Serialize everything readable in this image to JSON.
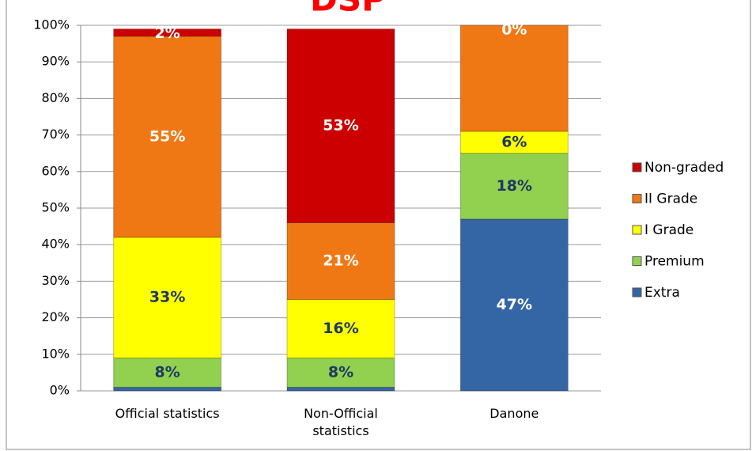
{
  "chart_data": {
    "type": "stacked_bar",
    "title": "DSP",
    "categories": [
      "Official statistics",
      "Non-Official statistics",
      "Danone"
    ],
    "series": [
      {
        "name": "Extra",
        "color": "#3465a4",
        "values": [
          1,
          1,
          47
        ],
        "value_labels": [
          null,
          null,
          "47%"
        ],
        "label_color": "#ffffff"
      },
      {
        "name": "Premium",
        "color": "#92d050",
        "values": [
          8,
          8,
          18
        ],
        "value_labels": [
          "8%",
          "8%",
          "18%"
        ],
        "label_color": "#1f3864"
      },
      {
        "name": "I Grade",
        "color": "#ffff00",
        "values": [
          33,
          16,
          6
        ],
        "value_labels": [
          "33%",
          "16%",
          "6%"
        ],
        "label_color": "#1f3864"
      },
      {
        "name": "II Grade",
        "color": "#f07814",
        "values": [
          55,
          21,
          29
        ],
        "value_labels": [
          "55%",
          "21%",
          null
        ],
        "label_color": "#ffffff"
      },
      {
        "name": "Non-graded",
        "color": "#cc0000",
        "values": [
          2,
          53,
          0
        ],
        "value_labels": [
          "2%",
          "53%",
          "0%"
        ],
        "label_color": "#ffffff"
      }
    ],
    "ylim": [
      0,
      100
    ],
    "yticks": [
      {
        "value": 0,
        "label": "0%"
      },
      {
        "value": 10,
        "label": "10%"
      },
      {
        "value": 20,
        "label": "20%"
      },
      {
        "value": 30,
        "label": "30%"
      },
      {
        "value": 40,
        "label": "40%"
      },
      {
        "value": 50,
        "label": "50%"
      },
      {
        "value": 60,
        "label": "60%"
      },
      {
        "value": 70,
        "label": "70%"
      },
      {
        "value": 80,
        "label": "80%"
      },
      {
        "value": 90,
        "label": "90%"
      },
      {
        "value": 100,
        "label": "100%"
      }
    ],
    "grid": true,
    "legend": "right"
  }
}
